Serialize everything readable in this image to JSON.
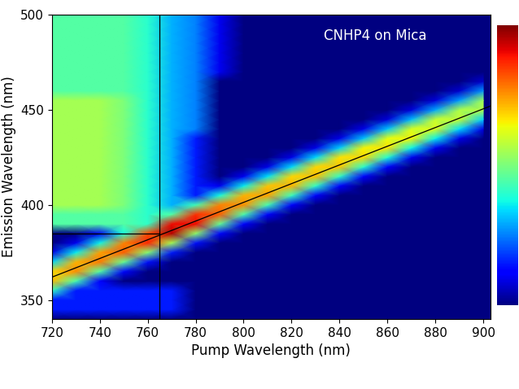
{
  "chart_data": {
    "type": "heatmap",
    "annotation": "CNHP4 on Mica",
    "x_label": "Pump Wavelength (nm)",
    "y_label": "Emission Wavelength (nm)",
    "x": [
      720,
      730,
      740,
      750,
      760,
      770,
      780,
      790,
      800,
      810,
      820,
      830,
      840,
      850,
      860,
      870,
      880,
      890,
      900
    ],
    "y": [
      340,
      345,
      350,
      355,
      360,
      365,
      370,
      375,
      380,
      385,
      390,
      395,
      400,
      405,
      410,
      415,
      420,
      425,
      430,
      435,
      440,
      445,
      450,
      455,
      460,
      465,
      470,
      475,
      480,
      485,
      490,
      495,
      500
    ],
    "cells": [
      [
        0,
        0,
        0,
        0,
        0,
        0,
        0,
        0,
        0,
        0,
        0,
        0,
        0,
        0,
        0,
        0,
        0,
        0,
        0
      ],
      [
        0.15,
        0.15,
        0.15,
        0.15,
        0.15,
        0.15,
        0,
        0,
        0,
        0,
        0,
        0,
        0,
        0,
        0,
        0,
        0,
        0,
        0
      ],
      [
        0.15,
        0.15,
        0.15,
        0.15,
        0.15,
        0.15,
        0,
        0,
        0,
        0,
        0,
        0,
        0,
        0,
        0,
        0,
        0,
        0,
        0
      ],
      [
        0.41,
        0.15,
        0.15,
        0.15,
        0.15,
        0.15,
        0,
        0,
        0,
        0,
        0,
        0,
        0,
        0,
        0,
        0,
        0,
        0,
        0
      ],
      [
        0.71,
        0.44,
        0.12,
        0,
        0,
        0,
        0,
        0,
        0,
        0,
        0,
        0,
        0,
        0,
        0,
        0,
        0,
        0,
        0
      ],
      [
        0.68,
        0.76,
        0.45,
        0.13,
        0,
        0,
        0,
        0,
        0,
        0,
        0,
        0,
        0,
        0,
        0,
        0,
        0,
        0,
        0
      ],
      [
        0.34,
        0.72,
        0.78,
        0.47,
        0.14,
        0,
        0,
        0,
        0,
        0,
        0,
        0,
        0,
        0,
        0,
        0,
        0,
        0,
        0
      ],
      [
        0.09,
        0.36,
        0.74,
        0.81,
        0.51,
        0.15,
        0,
        0,
        0,
        0,
        0,
        0,
        0,
        0,
        0,
        0,
        0,
        0,
        0
      ],
      [
        0,
        0.1,
        0.37,
        0.77,
        0.87,
        0.55,
        0.14,
        0,
        0,
        0,
        0,
        0,
        0,
        0,
        0,
        0,
        0,
        0,
        0
      ],
      [
        0,
        0,
        0.1,
        0.38,
        0.83,
        0.95,
        0.52,
        0.13,
        0,
        0,
        0,
        0,
        0,
        0,
        0,
        0,
        0,
        0,
        0
      ],
      [
        0.45,
        0.45,
        0.45,
        0.45,
        0.41,
        0.9,
        0.9,
        0.47,
        0.12,
        0,
        0,
        0,
        0,
        0,
        0,
        0,
        0,
        0,
        0
      ],
      [
        0.45,
        0.45,
        0.45,
        0.45,
        0.4,
        0.45,
        0.86,
        0.81,
        0.44,
        0.12,
        0,
        0,
        0,
        0,
        0,
        0,
        0,
        0,
        0
      ],
      [
        0.55,
        0.55,
        0.55,
        0.5,
        0.4,
        0.3,
        0.43,
        0.77,
        0.76,
        0.43,
        0.11,
        0,
        0,
        0,
        0,
        0,
        0,
        0,
        0
      ],
      [
        0.55,
        0.55,
        0.55,
        0.5,
        0.4,
        0.3,
        0.15,
        0.38,
        0.72,
        0.74,
        0.42,
        0.11,
        0,
        0,
        0,
        0,
        0,
        0,
        0
      ],
      [
        0.55,
        0.55,
        0.55,
        0.5,
        0.4,
        0.3,
        0.15,
        0.1,
        0.36,
        0.7,
        0.72,
        0.41,
        0.11,
        0,
        0,
        0,
        0,
        0,
        0
      ],
      [
        0.55,
        0.55,
        0.55,
        0.5,
        0.4,
        0.3,
        0.15,
        0,
        0.1,
        0.35,
        0.68,
        0.71,
        0.41,
        0.11,
        0,
        0,
        0,
        0,
        0
      ],
      [
        0.55,
        0.55,
        0.55,
        0.5,
        0.4,
        0.3,
        0.15,
        0,
        0,
        0.09,
        0.34,
        0.68,
        0.7,
        0.4,
        0.11,
        0,
        0,
        0,
        0
      ],
      [
        0.55,
        0.55,
        0.55,
        0.5,
        0.4,
        0.3,
        0.15,
        0,
        0,
        0,
        0.09,
        0.34,
        0.67,
        0.68,
        0.39,
        0.1,
        0,
        0,
        0
      ],
      [
        0.55,
        0.55,
        0.55,
        0.5,
        0.4,
        0.3,
        0.15,
        0,
        0,
        0,
        0,
        0.09,
        0.33,
        0.65,
        0.67,
        0.37,
        0.1,
        0,
        0
      ],
      [
        0.55,
        0.55,
        0.55,
        0.5,
        0.4,
        0.3,
        0.15,
        0,
        0,
        0,
        0,
        0,
        0.09,
        0.32,
        0.63,
        0.65,
        0.36,
        0.09,
        0
      ],
      [
        0.55,
        0.55,
        0.55,
        0.5,
        0.4,
        0.3,
        0.25,
        0,
        0,
        0,
        0,
        0,
        0,
        0.09,
        0.32,
        0.61,
        0.62,
        0.34,
        0.09
      ],
      [
        0.55,
        0.55,
        0.55,
        0.5,
        0.4,
        0.3,
        0.25,
        0,
        0,
        0,
        0,
        0,
        0,
        0,
        0.08,
        0.31,
        0.59,
        0.59,
        0.33
      ],
      [
        0.55,
        0.55,
        0.55,
        0.5,
        0.4,
        0.3,
        0.25,
        0,
        0,
        0,
        0,
        0,
        0,
        0,
        0,
        0.08,
        0.29,
        0.56,
        0.57
      ],
      [
        0.55,
        0.55,
        0.55,
        0.5,
        0.4,
        0.3,
        0.25,
        0,
        0,
        0,
        0,
        0,
        0,
        0,
        0,
        0,
        0.08,
        0.28,
        0.54
      ],
      [
        0.45,
        0.45,
        0.45,
        0.45,
        0.4,
        0.3,
        0.25,
        0,
        0,
        0,
        0,
        0,
        0,
        0,
        0,
        0,
        0,
        0.07,
        0.27
      ],
      [
        0.45,
        0.45,
        0.45,
        0.45,
        0.4,
        0.3,
        0.25,
        0,
        0,
        0,
        0,
        0,
        0,
        0,
        0,
        0,
        0,
        0,
        0.07
      ],
      [
        0.45,
        0.45,
        0.45,
        0.45,
        0.4,
        0.3,
        0.25,
        0.1,
        0,
        0,
        0,
        0,
        0,
        0,
        0,
        0,
        0,
        0,
        0
      ],
      [
        0.45,
        0.45,
        0.45,
        0.45,
        0.4,
        0.3,
        0.25,
        0.1,
        0,
        0,
        0,
        0,
        0,
        0,
        0,
        0,
        0,
        0,
        0
      ],
      [
        0.45,
        0.45,
        0.45,
        0.45,
        0.4,
        0.3,
        0.25,
        0.1,
        0,
        0,
        0,
        0,
        0,
        0,
        0,
        0,
        0,
        0,
        0
      ],
      [
        0.45,
        0.45,
        0.45,
        0.45,
        0.4,
        0.3,
        0.25,
        0.1,
        0,
        0,
        0,
        0,
        0,
        0,
        0,
        0,
        0,
        0,
        0
      ],
      [
        0.45,
        0.45,
        0.45,
        0.45,
        0.4,
        0.3,
        0.25,
        0.1,
        0,
        0,
        0,
        0,
        0,
        0,
        0,
        0,
        0,
        0,
        0
      ],
      [
        0.45,
        0.45,
        0.45,
        0.45,
        0.4,
        0.3,
        0.25,
        0.1,
        0,
        0,
        0,
        0,
        0,
        0,
        0,
        0,
        0,
        0,
        0
      ],
      [
        0.45,
        0.45,
        0.45,
        0.45,
        0.4,
        0.3,
        0.25,
        0.1,
        0,
        0,
        0,
        0,
        0,
        0,
        0,
        0,
        0,
        0,
        0
      ]
    ],
    "colorbar_range": [
      0,
      1
    ],
    "colorbar_ticks": [],
    "lines": [
      {
        "x": [
          720,
          765
        ],
        "y": [
          385,
          385
        ]
      },
      {
        "x": [
          765,
          765
        ],
        "y": [
          340,
          500
        ]
      },
      {
        "x": [
          720,
          903
        ],
        "y": [
          362,
          452
        ]
      }
    ],
    "xlim": [
      720,
      903
    ],
    "ylim": [
      340,
      500
    ],
    "xticks": [
      720,
      740,
      760,
      780,
      800,
      820,
      840,
      860,
      880,
      900
    ],
    "yticks": [
      350,
      400,
      450,
      500
    ],
    "grid": false
  }
}
